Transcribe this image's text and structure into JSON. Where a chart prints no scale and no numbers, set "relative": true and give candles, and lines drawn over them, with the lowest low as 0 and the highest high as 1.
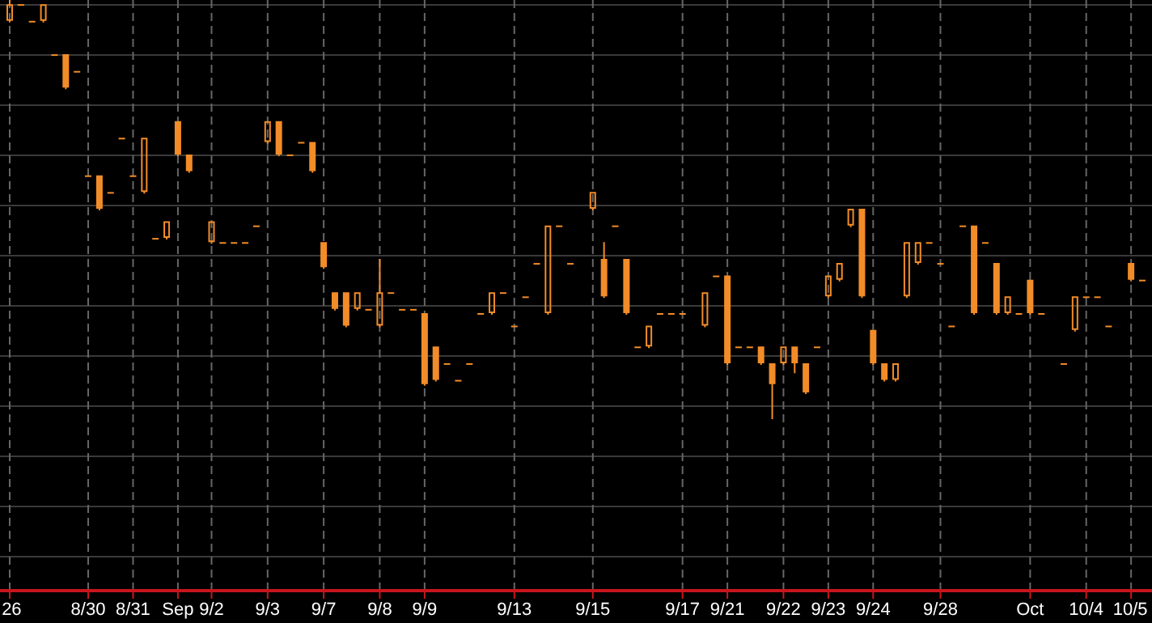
{
  "chart_data": {
    "type": "candlestick",
    "relative": true,
    "grid": true,
    "color": "#f28c28",
    "categories": [
      "26",
      null,
      null,
      null,
      null,
      null,
      null,
      "8/30",
      null,
      null,
      null,
      "8/31",
      null,
      null,
      null,
      "Sep",
      null,
      null,
      "9/2",
      null,
      null,
      null,
      null,
      "9/3",
      null,
      null,
      null,
      null,
      "9/7",
      null,
      null,
      null,
      null,
      "9/8",
      null,
      null,
      null,
      "9/9",
      null,
      null,
      null,
      null,
      null,
      null,
      null,
      "9/13",
      null,
      null,
      null,
      null,
      null,
      null,
      "9/15",
      null,
      null,
      null,
      null,
      null,
      null,
      null,
      "9/17",
      null,
      null,
      null,
      "9/21",
      null,
      null,
      null,
      null,
      "9/22",
      null,
      null,
      null,
      "9/23",
      null,
      null,
      null,
      "9/24",
      null,
      null,
      null,
      null,
      null,
      "9/28",
      null,
      null,
      null,
      null,
      null,
      null,
      null,
      "Oct",
      null,
      null,
      null,
      null,
      "10/4",
      null,
      null,
      null,
      "10/5",
      null
    ],
    "ohlc": [
      [
        0.95,
        1.0,
        0.95,
        0.99
      ],
      [
        0.99,
        0.99,
        0.99,
        0.99
      ],
      [
        0.95,
        0.95,
        0.95,
        0.95
      ],
      [
        0.95,
        0.99,
        0.95,
        0.99
      ],
      [
        0.87,
        0.87,
        0.87,
        0.87
      ],
      [
        0.87,
        0.87,
        0.79,
        0.79
      ],
      [
        0.83,
        0.83,
        0.83,
        0.83
      ],
      [
        0.58,
        0.58,
        0.58,
        0.58
      ],
      [
        0.58,
        0.58,
        0.5,
        0.5
      ],
      [
        0.54,
        0.54,
        0.54,
        0.54
      ],
      [
        0.67,
        0.67,
        0.67,
        0.67
      ],
      [
        0.58,
        0.58,
        0.58,
        0.58
      ],
      [
        0.54,
        0.67,
        0.54,
        0.67
      ],
      [
        0.43,
        0.43,
        0.43,
        0.43
      ],
      [
        0.43,
        0.47,
        0.43,
        0.47
      ],
      [
        0.71,
        0.71,
        0.63,
        0.63
      ],
      [
        0.63,
        0.63,
        0.59,
        0.59
      ],
      null,
      [
        0.42,
        0.47,
        0.42,
        0.47
      ],
      [
        0.42,
        0.42,
        0.42,
        0.42
      ],
      [
        0.42,
        0.42,
        0.42,
        0.42
      ],
      [
        0.42,
        0.42,
        0.42,
        0.42
      ],
      [
        0.46,
        0.46,
        0.46,
        0.46
      ],
      [
        0.66,
        0.71,
        0.66,
        0.71
      ],
      [
        0.71,
        0.71,
        0.63,
        0.63
      ],
      [
        0.63,
        0.63,
        0.63,
        0.63
      ],
      [
        0.66,
        0.66,
        0.66,
        0.66
      ],
      [
        0.66,
        0.66,
        0.59,
        0.59
      ],
      [
        0.42,
        0.42,
        0.36,
        0.36
      ],
      [
        0.3,
        0.3,
        0.26,
        0.26
      ],
      [
        0.3,
        0.3,
        0.22,
        0.22
      ],
      [
        0.26,
        0.3,
        0.26,
        0.3
      ],
      [
        0.26,
        0.26,
        0.26,
        0.26
      ],
      [
        0.22,
        0.38,
        0.22,
        0.3
      ],
      [
        0.3,
        0.3,
        0.3,
        0.3
      ],
      [
        0.26,
        0.26,
        0.26,
        0.26
      ],
      [
        0.26,
        0.26,
        0.26,
        0.26
      ],
      [
        0.25,
        0.25,
        0.08,
        0.08
      ],
      [
        0.17,
        0.17,
        0.09,
        0.09
      ],
      [
        0.13,
        0.13,
        0.13,
        0.13
      ],
      [
        0.09,
        0.09,
        0.09,
        0.09
      ],
      [
        0.13,
        0.13,
        0.13,
        0.13
      ],
      [
        0.25,
        0.25,
        0.25,
        0.25
      ],
      [
        0.25,
        0.3,
        0.25,
        0.3
      ],
      [
        0.3,
        0.3,
        0.3,
        0.3
      ],
      [
        0.22,
        0.22,
        0.22,
        0.22
      ],
      [
        0.29,
        0.29,
        0.29,
        0.29
      ],
      [
        0.37,
        0.37,
        0.37,
        0.37
      ],
      [
        0.25,
        0.46,
        0.25,
        0.46
      ],
      [
        0.46,
        0.46,
        0.46,
        0.46
      ],
      [
        0.37,
        0.37,
        0.37,
        0.37
      ],
      null,
      [
        0.5,
        0.54,
        0.5,
        0.54
      ],
      [
        0.38,
        0.42,
        0.29,
        0.29
      ],
      [
        0.46,
        0.46,
        0.46,
        0.46
      ],
      [
        0.38,
        0.38,
        0.25,
        0.25
      ],
      [
        0.17,
        0.17,
        0.17,
        0.17
      ],
      [
        0.17,
        0.22,
        0.17,
        0.22
      ],
      [
        0.25,
        0.25,
        0.25,
        0.25
      ],
      [
        0.25,
        0.25,
        0.25,
        0.25
      ],
      [
        0.25,
        0.25,
        0.25,
        0.25
      ],
      null,
      [
        0.22,
        0.3,
        0.22,
        0.3
      ],
      [
        0.34,
        0.34,
        0.34,
        0.34
      ],
      [
        0.34,
        0.34,
        0.13,
        0.13
      ],
      [
        0.17,
        0.17,
        0.17,
        0.17
      ],
      [
        0.17,
        0.17,
        0.17,
        0.17
      ],
      [
        0.17,
        0.17,
        0.13,
        0.13
      ],
      [
        0.13,
        0.13,
        0.0,
        0.08
      ],
      [
        0.13,
        0.17,
        0.13,
        0.17
      ],
      [
        0.17,
        0.17,
        0.11,
        0.13
      ],
      [
        0.13,
        0.13,
        0.06,
        0.06
      ],
      [
        0.17,
        0.17,
        0.17,
        0.17
      ],
      [
        0.29,
        0.34,
        0.29,
        0.34
      ],
      [
        0.33,
        0.37,
        0.33,
        0.37
      ],
      [
        0.46,
        0.5,
        0.46,
        0.5
      ],
      [
        0.5,
        0.5,
        0.29,
        0.29
      ],
      [
        0.21,
        0.21,
        0.13,
        0.13
      ],
      [
        0.13,
        0.13,
        0.09,
        0.09
      ],
      [
        0.09,
        0.13,
        0.09,
        0.13
      ],
      [
        0.29,
        0.42,
        0.29,
        0.42
      ],
      [
        0.37,
        0.42,
        0.37,
        0.42
      ],
      [
        0.42,
        0.42,
        0.42,
        0.42
      ],
      [
        0.37,
        0.37,
        0.37,
        0.37
      ],
      [
        0.22,
        0.22,
        0.22,
        0.22
      ],
      [
        0.46,
        0.46,
        0.46,
        0.46
      ],
      [
        0.46,
        0.46,
        0.25,
        0.25
      ],
      [
        0.42,
        0.42,
        0.42,
        0.42
      ],
      [
        0.37,
        0.37,
        0.25,
        0.25
      ],
      [
        0.25,
        0.29,
        0.25,
        0.29
      ],
      [
        0.25,
        0.25,
        0.25,
        0.25
      ],
      [
        0.33,
        0.33,
        0.25,
        0.25
      ],
      [
        0.25,
        0.25,
        0.25,
        0.25
      ],
      null,
      [
        0.13,
        0.13,
        0.13,
        0.13
      ],
      [
        0.21,
        0.29,
        0.21,
        0.29
      ],
      [
        0.29,
        0.29,
        0.29,
        0.29
      ],
      [
        0.29,
        0.29,
        0.29,
        0.29
      ],
      [
        0.22,
        0.22,
        0.22,
        0.22
      ],
      null,
      [
        0.37,
        0.37,
        0.33,
        0.33
      ],
      [
        0.33,
        0.33,
        0.33,
        0.33
      ]
    ]
  }
}
